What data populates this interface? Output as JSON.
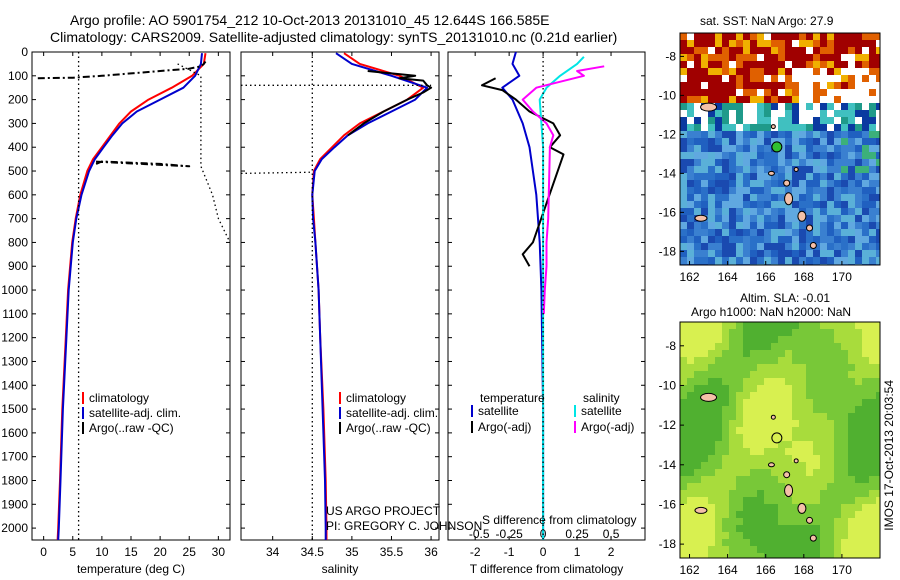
{
  "header": {
    "line1": "Argo profile: AO 5901754_212 10-Oct-2013 20131010_45 12.644S 166.585E",
    "line2": "Climatology: CARS2009. Satellite-adjusted climatology: synTS_20131010.nc (0.21d earlier)"
  },
  "project": {
    "line1": "US ARGO PROJECT",
    "line2": "PI: GREGORY C. JOHNSON"
  },
  "stamp": "IMOS 17-Oct-2013 20:03:54",
  "colors": {
    "climatology": "#ff0000",
    "satellite": "#0000cc",
    "argo": "#000000",
    "salinity_sat": "#00e5e5",
    "salinity_argo": "#ff00ff"
  },
  "chart_data": [
    {
      "id": "temperature",
      "type": "line",
      "xlabel": "temperature (deg C)",
      "ylabel": "",
      "xlim": [
        -2,
        32
      ],
      "ylim": [
        2050,
        0
      ],
      "xticks": [
        0,
        5,
        10,
        15,
        20,
        25,
        30
      ],
      "yticks": [
        0,
        100,
        200,
        300,
        400,
        500,
        600,
        700,
        800,
        900,
        1000,
        1100,
        1200,
        1300,
        1400,
        1500,
        1600,
        1700,
        1800,
        1900,
        2000
      ],
      "legend": [
        "climatology",
        "satellite-adj. clim.",
        "Argo(..raw -QC)"
      ],
      "series": [
        {
          "name": "climatology",
          "color": "#ff0000",
          "depth": [
            5,
            50,
            100,
            150,
            200,
            250,
            300,
            350,
            400,
            450,
            500,
            600,
            700,
            800,
            1000,
            1200,
            1500,
            1800,
            2000,
            2050
          ],
          "values": [
            27.8,
            27.5,
            25.5,
            22,
            18,
            15,
            13,
            11.5,
            10,
            8.5,
            7.5,
            6.3,
            5.5,
            4.9,
            4.2,
            3.8,
            3.2,
            2.8,
            2.5,
            2.4
          ]
        },
        {
          "name": "satellite-adj. clim.",
          "color": "#0000cc",
          "depth": [
            5,
            50,
            100,
            150,
            200,
            250,
            300,
            350,
            400,
            450,
            500,
            600,
            700,
            800,
            1000,
            1200,
            1500,
            1800,
            2000,
            2050
          ],
          "values": [
            27.2,
            27,
            26,
            24,
            20,
            16,
            13.5,
            11.8,
            10.3,
            8.8,
            7.8,
            6.5,
            5.6,
            5,
            4.3,
            3.9,
            3.3,
            2.9,
            2.6,
            2.5
          ]
        },
        {
          "name": "Argo(..raw -QC)",
          "color": "#000000",
          "style": "dashdot",
          "depth": [
            110,
            108,
            100,
            90,
            80,
            70,
            60,
            50,
            40
          ],
          "values": [
            -1,
            5,
            10,
            15,
            20,
            25,
            27,
            27.5,
            27.8
          ]
        },
        {
          "name": "Argo(..raw -QC)",
          "color": "#000000",
          "style": "dashdot",
          "depth": [
            470,
            460,
            465,
            470,
            480,
            460
          ],
          "values": [
            9,
            10,
            15,
            20,
            25,
            8.5
          ]
        },
        {
          "name": "Argo(..raw -QC)",
          "color": "#000000",
          "style": "dotted",
          "depth": [
            0,
            2050
          ],
          "values": [
            6,
            6
          ]
        },
        {
          "name": "Argo(..raw -QC)",
          "color": "#000000",
          "style": "dotted",
          "depth": [
            50,
            100,
            480,
            600,
            700,
            800
          ],
          "values": [
            23,
            27,
            27,
            29,
            30,
            32
          ]
        }
      ]
    },
    {
      "id": "salinity",
      "type": "line",
      "xlabel": "salinity",
      "ylabel": "",
      "xlim": [
        33.6,
        36.1
      ],
      "ylim": [
        2050,
        0
      ],
      "xticks": [
        34,
        34.5,
        35,
        35.5,
        36
      ],
      "legend": [
        "climatology",
        "satellite-adj. clim.",
        "Argo(..raw -QC)"
      ],
      "series": [
        {
          "name": "climatology",
          "color": "#ff0000",
          "depth": [
            5,
            50,
            100,
            150,
            200,
            250,
            300,
            350,
            400,
            450,
            500,
            600,
            700,
            800,
            1000,
            1200,
            1500,
            1800,
            2000,
            2050
          ],
          "values": [
            34.9,
            35.1,
            35.6,
            35.9,
            35.7,
            35.4,
            35.1,
            34.9,
            34.75,
            34.6,
            34.52,
            34.5,
            34.52,
            34.54,
            34.58,
            34.6,
            34.64,
            34.67,
            34.68,
            34.68
          ]
        },
        {
          "name": "satellite-adj. clim.",
          "color": "#0000cc",
          "depth": [
            5,
            50,
            100,
            150,
            200,
            250,
            300,
            350,
            400,
            450,
            500,
            600,
            700,
            800,
            1000,
            1200,
            1500,
            1800,
            2000,
            2050
          ],
          "values": [
            34.8,
            35,
            35.5,
            35.95,
            35.8,
            35.5,
            35.2,
            34.95,
            34.78,
            34.62,
            34.53,
            34.5,
            34.51,
            34.54,
            34.58,
            34.6,
            34.63,
            34.66,
            34.67,
            34.67
          ]
        },
        {
          "name": "Argo(..raw -QC)",
          "color": "#000000",
          "depth": [
            80,
            90,
            100,
            110,
            120,
            140,
            150,
            170,
            200,
            250,
            300,
            350
          ],
          "values": [
            35.2,
            35.5,
            35.8,
            35.6,
            35.9,
            35.95,
            36.0,
            35.9,
            35.7,
            35.4,
            35.15,
            34.95
          ]
        },
        {
          "name": "Argo(..raw -QC)",
          "color": "#000000",
          "style": "dotted",
          "depth": [
            140,
            140
          ],
          "values": [
            33.6,
            36
          ]
        },
        {
          "name": "Argo(..raw -QC)",
          "color": "#000000",
          "style": "dotted",
          "depth": [
            510,
            505
          ],
          "values": [
            33.6,
            34.5
          ]
        },
        {
          "name": "Argo(..raw -QC)",
          "color": "#000000",
          "style": "dotted",
          "depth": [
            0,
            2050
          ],
          "values": [
            34.5,
            34.5
          ]
        }
      ]
    },
    {
      "id": "difference",
      "type": "line",
      "xlabel": "T difference from climatology",
      "xlabel2": "S difference from climatology",
      "ylabel": "",
      "xlim": [
        -2.8,
        3
      ],
      "ylim": [
        2050,
        0
      ],
      "xticks": [
        -2,
        -1,
        0,
        1,
        2
      ],
      "xticks_top": [
        "-0.5",
        "-0.25",
        "0",
        "0.25",
        "0.5"
      ],
      "legend_titles": [
        "temperature",
        "salinity"
      ],
      "legend": [
        "satellite",
        "Argo(-adj)",
        "satellite",
        "Argo(-adj)"
      ],
      "series": [
        {
          "name": "satellite",
          "group": "temperature",
          "color": "#0000cc",
          "depth": [
            0,
            50,
            100,
            150,
            200,
            300,
            400,
            500,
            600,
            800,
            1000,
            1500,
            2000,
            2050
          ],
          "values": [
            -0.8,
            -0.9,
            -0.7,
            -1.2,
            -0.9,
            -0.6,
            -0.4,
            -0.3,
            -0.2,
            -0.1,
            -0.05,
            0,
            0,
            0
          ]
        },
        {
          "name": "Argo(-adj)",
          "group": "temperature",
          "color": "#000000",
          "depth": [
            110,
            140,
            160,
            200,
            250,
            300,
            350,
            400,
            430,
            800,
            850,
            900
          ],
          "values": [
            -1.4,
            -1.8,
            -1.2,
            -0.8,
            -0.4,
            0.3,
            0.5,
            0.2,
            0.6,
            -0.3,
            -0.6,
            -0.4
          ]
        },
        {
          "name": "satellite",
          "group": "salinity",
          "color": "#00e5e5",
          "depth": [
            20,
            50,
            100,
            150,
            200,
            300,
            400,
            500,
            700,
            1000,
            1500,
            2000,
            2050
          ],
          "values": [
            1.2,
            1.0,
            0.5,
            0.1,
            -0.1,
            -0.05,
            0,
            0,
            0,
            0,
            0,
            0,
            0
          ]
        },
        {
          "name": "Argo(-adj)",
          "group": "salinity",
          "color": "#ff00ff",
          "depth": [
            60,
            80,
            100,
            150,
            200,
            250,
            300,
            350,
            400,
            700,
            800,
            900,
            1000,
            1100
          ],
          "values": [
            1.8,
            1.0,
            1.2,
            -0.2,
            -0.6,
            -0.3,
            0.1,
            0.3,
            0.2,
            0.15,
            0.1,
            0.1,
            0.05,
            0.02
          ]
        },
        {
          "name": "zero",
          "color": "#000000",
          "style": "dotted",
          "depth": [
            0,
            2050
          ],
          "values": [
            0,
            0
          ]
        }
      ]
    },
    {
      "id": "sst_map",
      "type": "heatmap",
      "title": "sat. SST: NaN Argo: 27.9",
      "xlim": [
        161.5,
        172
      ],
      "ylim": [
        -18.7,
        -6.8
      ],
      "xticks": [
        162,
        164,
        166,
        168,
        170
      ],
      "yticks": [
        -8,
        -10,
        -12,
        -14,
        -16,
        -18
      ],
      "float_position": [
        166.585,
        -12.644
      ]
    },
    {
      "id": "sla_map",
      "type": "heatmap",
      "title": "Altim. SLA: -0.01",
      "subtitle": "Argo h1000: NaN h2000: NaN",
      "xlim": [
        161.5,
        172
      ],
      "ylim": [
        -18.7,
        -6.8
      ],
      "xticks": [
        162,
        164,
        166,
        168,
        170
      ],
      "yticks": [
        -8,
        -10,
        -12,
        -14,
        -16,
        -18
      ],
      "float_position": [
        166.585,
        -12.644
      ]
    }
  ]
}
